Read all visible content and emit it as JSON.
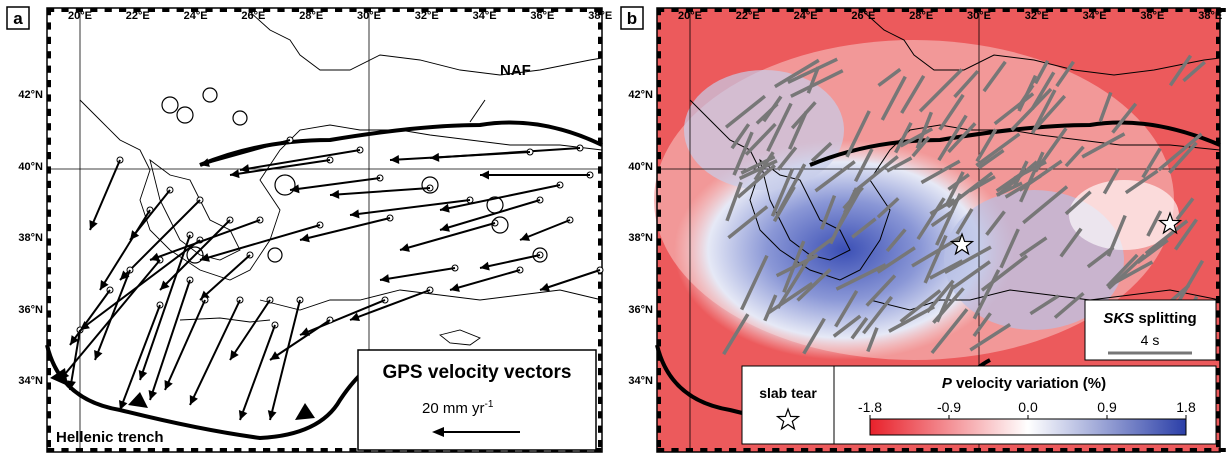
{
  "panel_a": {
    "label": "a",
    "lon_ticks": [
      "20°E",
      "22°E",
      "24°E",
      "26°E",
      "28°E",
      "30°E",
      "32°E",
      "34°E",
      "36°E",
      "38°E"
    ],
    "lat_ticks": [
      "42°N",
      "40°N",
      "38°N",
      "36°N",
      "34°N"
    ],
    "faults": {
      "naf": "NAF",
      "trench": "Hellenic trench"
    },
    "legend": {
      "title": "GPS velocity vectors",
      "scale_value": "20 mm yr",
      "scale_exponent": "-1"
    }
  },
  "panel_b": {
    "label": "b",
    "lon_ticks": [
      "20°E",
      "22°E",
      "24°E",
      "26°E",
      "28°E",
      "30°E",
      "32°E",
      "34°E",
      "36°E",
      "38°E"
    ],
    "lat_ticks": [
      "42°N",
      "40°N",
      "38°N",
      "36°N",
      "34°N"
    ],
    "sks_legend": {
      "title_italic": "SKS",
      "title_rest": " splitting",
      "scale": "4 s"
    },
    "slab_legend": {
      "label": "slab tear"
    },
    "colorbar": {
      "title_italic": "P",
      "title_rest": " velocity variation (%)",
      "ticks": [
        "-1.8",
        "-0.9",
        "0.0",
        "0.9",
        "1.8"
      ],
      "range": [
        -1.8,
        1.8
      ],
      "colors": {
        "min": "#e8212b",
        "mid": "#ffffff",
        "max": "#2b3fa8"
      }
    }
  }
}
